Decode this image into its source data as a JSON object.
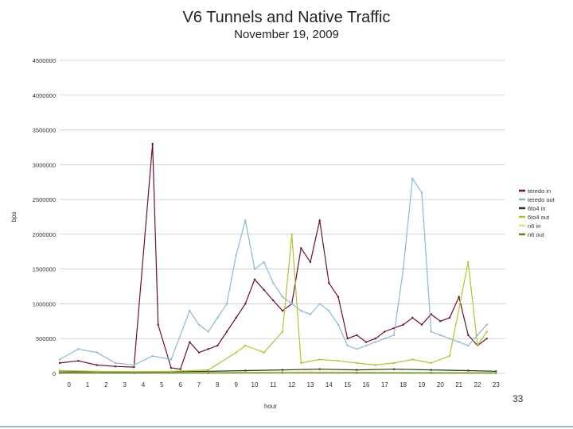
{
  "slide": {
    "page_number": "33"
  },
  "chart_data": {
    "type": "line",
    "title": "V6 Tunnels and Native Traffic",
    "subtitle": "November 19, 2009",
    "xlabel": "hour",
    "ylabel": "bps",
    "ylim": [
      0,
      4500000
    ],
    "yticks": [
      0,
      500000,
      1000000,
      1500000,
      2000000,
      2500000,
      3000000,
      3500000,
      4000000,
      4500000
    ],
    "ytick_labels": [
      "0",
      "500000",
      "1000000",
      "1500000",
      "2000000",
      "2500000",
      "3000000",
      "3500000",
      "4000000",
      "4500000"
    ],
    "xlim": [
      0,
      24
    ],
    "x_hour_labels": [
      "0",
      "1",
      "2",
      "3",
      "4",
      "5",
      "6",
      "7",
      "8",
      "9",
      "10",
      "11",
      "12",
      "13",
      "14",
      "15",
      "16",
      "17",
      "18",
      "19",
      "20",
      "21",
      "22",
      "23"
    ],
    "grid": "horizontal",
    "legend_position": "right",
    "series": [
      {
        "name": "teredo in",
        "color": "#6b0f2a",
        "points": [
          [
            0,
            150000
          ],
          [
            1,
            180000
          ],
          [
            2,
            120000
          ],
          [
            3,
            100000
          ],
          [
            4,
            90000
          ],
          [
            5,
            3300000
          ],
          [
            5.3,
            700000
          ],
          [
            6,
            80000
          ],
          [
            6.5,
            60000
          ],
          [
            7,
            450000
          ],
          [
            7.5,
            300000
          ],
          [
            8,
            350000
          ],
          [
            8.5,
            400000
          ],
          [
            9,
            600000
          ],
          [
            9.5,
            800000
          ],
          [
            10,
            1000000
          ],
          [
            10.5,
            1350000
          ],
          [
            11,
            1200000
          ],
          [
            11.5,
            1050000
          ],
          [
            12,
            900000
          ],
          [
            12.5,
            1000000
          ],
          [
            13,
            1800000
          ],
          [
            13.5,
            1600000
          ],
          [
            14,
            2200000
          ],
          [
            14.5,
            1300000
          ],
          [
            15,
            1100000
          ],
          [
            15.5,
            500000
          ],
          [
            16,
            550000
          ],
          [
            16.5,
            450000
          ],
          [
            17,
            500000
          ],
          [
            17.5,
            600000
          ],
          [
            18,
            650000
          ],
          [
            18.5,
            700000
          ],
          [
            19,
            800000
          ],
          [
            19.5,
            700000
          ],
          [
            20,
            850000
          ],
          [
            20.5,
            750000
          ],
          [
            21,
            800000
          ],
          [
            21.5,
            1100000
          ],
          [
            22,
            550000
          ],
          [
            22.5,
            400000
          ],
          [
            23,
            500000
          ]
        ]
      },
      {
        "name": "teredo out",
        "color": "#8ab8d8",
        "points": [
          [
            0,
            200000
          ],
          [
            1,
            350000
          ],
          [
            2,
            300000
          ],
          [
            3,
            150000
          ],
          [
            4,
            120000
          ],
          [
            5,
            250000
          ],
          [
            6,
            200000
          ],
          [
            7,
            900000
          ],
          [
            7.5,
            700000
          ],
          [
            8,
            600000
          ],
          [
            8.5,
            800000
          ],
          [
            9,
            1000000
          ],
          [
            9.5,
            1700000
          ],
          [
            10,
            2200000
          ],
          [
            10.5,
            1500000
          ],
          [
            11,
            1600000
          ],
          [
            11.5,
            1300000
          ],
          [
            12,
            1100000
          ],
          [
            12.5,
            1000000
          ],
          [
            13,
            900000
          ],
          [
            13.5,
            850000
          ],
          [
            14,
            1000000
          ],
          [
            14.5,
            900000
          ],
          [
            15,
            700000
          ],
          [
            15.5,
            400000
          ],
          [
            16,
            350000
          ],
          [
            16.5,
            400000
          ],
          [
            17,
            450000
          ],
          [
            17.5,
            500000
          ],
          [
            18,
            550000
          ],
          [
            18.5,
            1500000
          ],
          [
            19,
            2800000
          ],
          [
            19.5,
            2600000
          ],
          [
            20,
            600000
          ],
          [
            20.5,
            550000
          ],
          [
            21,
            500000
          ],
          [
            21.5,
            450000
          ],
          [
            22,
            400000
          ],
          [
            22.5,
            550000
          ],
          [
            23,
            700000
          ]
        ]
      },
      {
        "name": "6to4 in",
        "color": "#2b3a14",
        "points": [
          [
            0,
            20000
          ],
          [
            2,
            25000
          ],
          [
            4,
            15000
          ],
          [
            6,
            20000
          ],
          [
            8,
            30000
          ],
          [
            10,
            40000
          ],
          [
            12,
            50000
          ],
          [
            14,
            60000
          ],
          [
            16,
            50000
          ],
          [
            18,
            60000
          ],
          [
            20,
            50000
          ],
          [
            22,
            40000
          ],
          [
            23.5,
            30000
          ]
        ]
      },
      {
        "name": "6to4 out",
        "color": "#b5c22a",
        "points": [
          [
            0,
            40000
          ],
          [
            2,
            30000
          ],
          [
            4,
            25000
          ],
          [
            6,
            30000
          ],
          [
            8,
            50000
          ],
          [
            9.5,
            300000
          ],
          [
            10,
            400000
          ],
          [
            11,
            300000
          ],
          [
            12,
            600000
          ],
          [
            12.5,
            2000000
          ],
          [
            13,
            150000
          ],
          [
            14,
            200000
          ],
          [
            15,
            180000
          ],
          [
            16,
            150000
          ],
          [
            17,
            120000
          ],
          [
            18,
            150000
          ],
          [
            19,
            200000
          ],
          [
            20,
            150000
          ],
          [
            21,
            250000
          ],
          [
            22,
            1600000
          ],
          [
            22.5,
            400000
          ],
          [
            23,
            600000
          ]
        ]
      },
      {
        "name": "n6 in",
        "color": "#e6e07a",
        "points": [
          [
            0,
            10000
          ],
          [
            4,
            8000
          ],
          [
            8,
            15000
          ],
          [
            12,
            20000
          ],
          [
            16,
            18000
          ],
          [
            20,
            15000
          ],
          [
            23.5,
            12000
          ]
        ]
      },
      {
        "name": "n6 out",
        "color": "#4f8a2a",
        "points": [
          [
            0,
            5000
          ],
          [
            4,
            4000
          ],
          [
            8,
            6000
          ],
          [
            12,
            8000
          ],
          [
            16,
            7000
          ],
          [
            20,
            6000
          ],
          [
            23.5,
            5000
          ]
        ]
      }
    ]
  }
}
